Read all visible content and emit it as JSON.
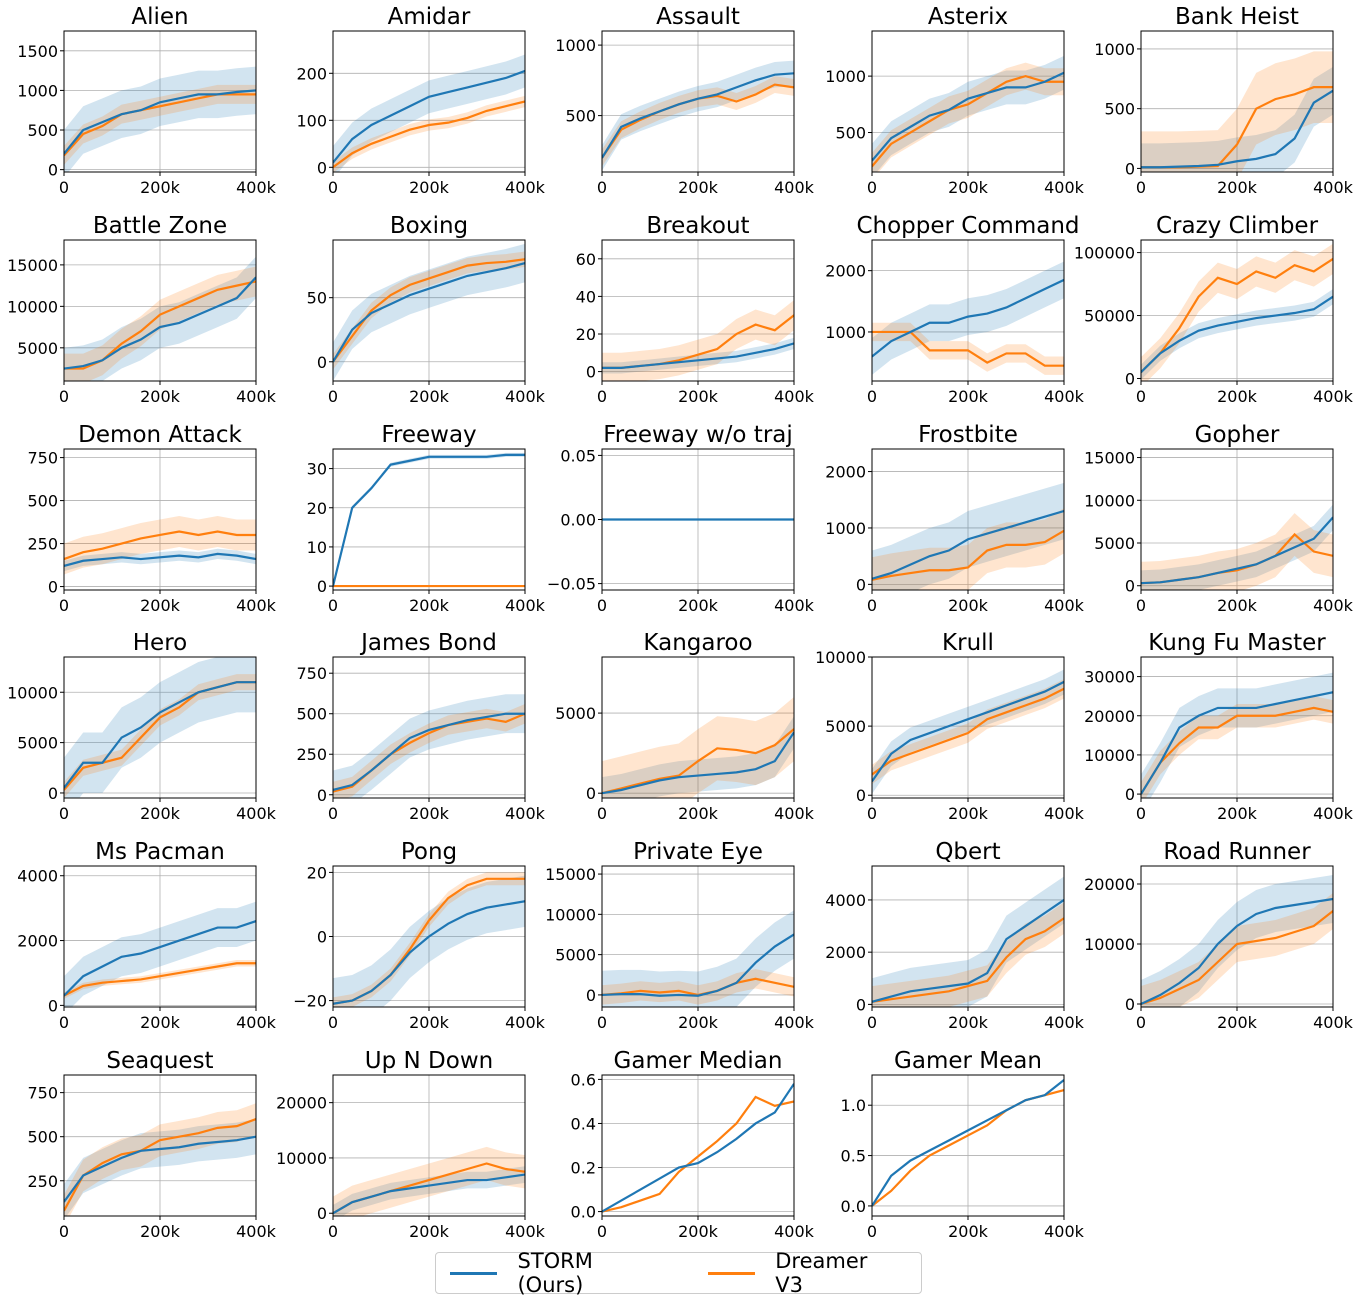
{
  "chart_data": {
    "type": "line",
    "grid": true,
    "legend_placement": "bottom-center",
    "x": [
      0,
      40000,
      80000,
      120000,
      160000,
      200000,
      240000,
      280000,
      320000,
      360000,
      400000
    ],
    "xlim": [
      0,
      400000
    ],
    "xtick_labels": [
      "0",
      "200k",
      "400k"
    ],
    "xticks": [
      0,
      200000,
      400000
    ],
    "series_names": [
      "STORM (Ours)",
      "Dreamer V3"
    ],
    "colors": {
      "storm": "#1f77b4",
      "dreamer": "#ff7f0e"
    },
    "subplots": [
      {
        "title": "Alien",
        "ylim": [
          -30,
          1750
        ],
        "yticks": [
          0,
          500,
          1000,
          1500
        ],
        "storm": [
          200,
          500,
          600,
          700,
          750,
          850,
          900,
          950,
          950,
          980,
          1000
        ],
        "storm_std": 300,
        "dreamer": [
          180,
          450,
          550,
          700,
          750,
          800,
          850,
          900,
          950,
          950,
          950
        ],
        "dreamer_std": 120
      },
      {
        "title": "Amidar",
        "ylim": [
          -10,
          290
        ],
        "yticks": [
          0,
          100,
          200
        ],
        "storm": [
          10,
          60,
          90,
          110,
          130,
          150,
          160,
          170,
          180,
          190,
          205
        ],
        "storm_std": 35,
        "dreamer": [
          0,
          30,
          50,
          65,
          80,
          90,
          95,
          105,
          120,
          130,
          140
        ],
        "dreamer_std": 12
      },
      {
        "title": "Assault",
        "ylim": [
          100,
          1100
        ],
        "yticks": [
          500,
          1000
        ],
        "storm": [
          200,
          420,
          480,
          530,
          580,
          620,
          650,
          700,
          750,
          790,
          800
        ],
        "storm_std": 90,
        "dreamer": [
          200,
          400,
          470,
          530,
          580,
          620,
          640,
          600,
          650,
          720,
          700
        ],
        "dreamer_std": 60
      },
      {
        "title": "Asterix",
        "ylim": [
          150,
          1400
        ],
        "yticks": [
          500,
          1000
        ],
        "storm": [
          250,
          450,
          550,
          650,
          700,
          800,
          850,
          900,
          900,
          950,
          1030
        ],
        "storm_std": 150,
        "dreamer": [
          200,
          400,
          500,
          600,
          700,
          750,
          850,
          950,
          1000,
          950,
          950
        ],
        "dreamer_std": 120
      },
      {
        "title": "Bank Heist",
        "ylim": [
          -30,
          1150
        ],
        "yticks": [
          0,
          500,
          1000
        ],
        "storm": [
          10,
          10,
          15,
          20,
          30,
          60,
          80,
          120,
          250,
          550,
          650
        ],
        "storm_std": 200,
        "dreamer": [
          10,
          10,
          10,
          15,
          20,
          200,
          500,
          580,
          620,
          680,
          680
        ],
        "dreamer_std": 300
      },
      {
        "title": "Battle Zone",
        "ylim": [
          1000,
          18000
        ],
        "yticks": [
          5000,
          10000,
          15000
        ],
        "storm": [
          2500,
          2800,
          3500,
          5000,
          6000,
          7500,
          8000,
          9000,
          10000,
          11000,
          13500
        ],
        "storm_std": 2500,
        "dreamer": [
          2500,
          2500,
          3500,
          5500,
          7000,
          9000,
          10000,
          11000,
          12000,
          12500,
          13000
        ],
        "dreamer_std": 1800
      },
      {
        "title": "Boxing",
        "ylim": [
          -15,
          95
        ],
        "yticks": [
          0,
          50
        ],
        "storm": [
          0,
          25,
          38,
          45,
          52,
          57,
          62,
          67,
          70,
          73,
          77
        ],
        "storm_std": 15,
        "dreamer": [
          0,
          20,
          40,
          52,
          60,
          65,
          70,
          75,
          77,
          78,
          80
        ],
        "dreamer_std": 6
      },
      {
        "title": "Breakout",
        "ylim": [
          -5,
          70
        ],
        "yticks": [
          0,
          20,
          40,
          60
        ],
        "storm": [
          2,
          2,
          3,
          4,
          5,
          6,
          7,
          8,
          10,
          12,
          15
        ],
        "storm_std": 3,
        "dreamer": [
          2,
          2,
          3,
          4,
          6,
          9,
          12,
          20,
          25,
          22,
          30
        ],
        "dreamer_std": 8
      },
      {
        "title": "Chopper Command",
        "ylim": [
          200,
          2500
        ],
        "yticks": [
          1000,
          2000
        ],
        "storm": [
          600,
          850,
          1000,
          1150,
          1150,
          1250,
          1300,
          1400,
          1550,
          1700,
          1850
        ],
        "storm_std": 300,
        "dreamer": [
          1000,
          1000,
          1000,
          700,
          700,
          700,
          500,
          650,
          650,
          450,
          450
        ],
        "dreamer_std": 150
      },
      {
        "title": "Crazy Climber",
        "ylim": [
          -2000,
          110000
        ],
        "yticks": [
          0,
          50000,
          100000
        ],
        "storm": [
          5000,
          20000,
          30000,
          38000,
          42000,
          45000,
          48000,
          50000,
          52000,
          55000,
          65000
        ],
        "storm_std": 6000,
        "dreamer": [
          5000,
          20000,
          40000,
          65000,
          80000,
          75000,
          85000,
          80000,
          90000,
          85000,
          95000
        ],
        "dreamer_std": 12000
      },
      {
        "title": "Demon Attack",
        "ylim": [
          -20,
          800
        ],
        "yticks": [
          0,
          250,
          500,
          750
        ],
        "storm": [
          120,
          150,
          160,
          170,
          160,
          170,
          180,
          170,
          190,
          180,
          160
        ],
        "storm_std": 30,
        "dreamer": [
          160,
          200,
          220,
          250,
          280,
          300,
          320,
          300,
          320,
          300,
          300
        ],
        "dreamer_std": 90
      },
      {
        "title": "Freeway",
        "ylim": [
          -1,
          35
        ],
        "yticks": [
          0,
          10,
          20,
          30
        ],
        "storm": [
          0,
          20,
          25,
          31,
          32,
          33,
          33,
          33,
          33,
          33.5,
          33.5
        ],
        "storm_std": 0.5,
        "dreamer": [
          0,
          0,
          0,
          0,
          0,
          0,
          0,
          0,
          0,
          0,
          0
        ],
        "dreamer_std": 0
      },
      {
        "title": "Freeway w/o traj",
        "ylim": [
          -0.055,
          0.055
        ],
        "yticks": [
          -0.05,
          0,
          0.05
        ],
        "ytick_labels": [
          "−0.05",
          "0.00",
          "0.05"
        ],
        "storm": [
          0,
          0,
          0,
          0,
          0,
          0,
          0,
          0,
          0,
          0,
          0
        ],
        "storm_std": 0,
        "dreamer": [
          0,
          0,
          0,
          0,
          0,
          0,
          0,
          0,
          0,
          0,
          0
        ],
        "dreamer_std": 0
      },
      {
        "title": "Frostbite",
        "ylim": [
          -100,
          2400
        ],
        "yticks": [
          0,
          1000,
          2000
        ],
        "storm": [
          100,
          200,
          350,
          500,
          600,
          800,
          900,
          1000,
          1100,
          1200,
          1300
        ],
        "storm_std": 500,
        "dreamer": [
          80,
          150,
          200,
          250,
          250,
          300,
          600,
          700,
          700,
          750,
          950
        ],
        "dreamer_std": 400
      },
      {
        "title": "Gopher",
        "ylim": [
          -500,
          16000
        ],
        "yticks": [
          0,
          5000,
          10000,
          15000
        ],
        "storm": [
          300,
          400,
          700,
          1000,
          1500,
          2000,
          2500,
          3500,
          4500,
          5500,
          8000
        ],
        "storm_std": 1500,
        "dreamer": [
          300,
          400,
          700,
          1000,
          1500,
          1800,
          2500,
          3500,
          6000,
          4000,
          3500
        ],
        "dreamer_std": 2500
      },
      {
        "title": "Hero",
        "ylim": [
          -500,
          13500
        ],
        "yticks": [
          0,
          5000,
          10000
        ],
        "storm": [
          500,
          3000,
          3000,
          5500,
          6500,
          8000,
          9000,
          10000,
          10500,
          11000,
          11000
        ],
        "storm_std": 3000,
        "dreamer": [
          300,
          2500,
          3000,
          3500,
          5500,
          7500,
          8500,
          10000,
          10500,
          11000,
          11000
        ],
        "dreamer_std": 800
      },
      {
        "title": "James Bond",
        "ylim": [
          -20,
          850
        ],
        "yticks": [
          0,
          250,
          500,
          750
        ],
        "storm": [
          30,
          60,
          150,
          250,
          350,
          400,
          430,
          460,
          480,
          500,
          500
        ],
        "storm_std": 120,
        "dreamer": [
          20,
          50,
          150,
          250,
          320,
          380,
          430,
          450,
          470,
          450,
          500
        ],
        "dreamer_std": 60
      },
      {
        "title": "Kangaroo",
        "ylim": [
          -300,
          8500
        ],
        "yticks": [
          0,
          5000
        ],
        "storm": [
          0,
          200,
          500,
          800,
          1000,
          1100,
          1200,
          1300,
          1500,
          2000,
          3800
        ],
        "storm_std": 1000,
        "dreamer": [
          0,
          300,
          600,
          900,
          1100,
          2000,
          2800,
          2700,
          2500,
          3000,
          4000
        ],
        "dreamer_std": 2000
      },
      {
        "title": "Krull",
        "ylim": [
          -200,
          10000
        ],
        "yticks": [
          0,
          5000,
          10000
        ],
        "storm": [
          1000,
          3000,
          4000,
          4500,
          5000,
          5500,
          6000,
          6500,
          7000,
          7500,
          8200
        ],
        "storm_std": 900,
        "dreamer": [
          1500,
          2500,
          3000,
          3500,
          4000,
          4500,
          5500,
          6000,
          6500,
          7000,
          7700
        ],
        "dreamer_std": 700
      },
      {
        "title": "Kung Fu Master",
        "ylim": [
          -1000,
          35000
        ],
        "yticks": [
          0,
          10000,
          20000,
          30000
        ],
        "storm": [
          0,
          8000,
          17000,
          20000,
          22000,
          22000,
          22000,
          23000,
          24000,
          25000,
          26000
        ],
        "storm_std": 5000,
        "dreamer": [
          0,
          8000,
          13000,
          17000,
          17000,
          20000,
          20000,
          20000,
          21000,
          22000,
          21000
        ],
        "dreamer_std": 3000
      },
      {
        "title": "Ms Pacman",
        "ylim": [
          -50,
          4300
        ],
        "yticks": [
          0,
          2000,
          4000
        ],
        "storm": [
          300,
          900,
          1200,
          1500,
          1600,
          1800,
          2000,
          2200,
          2400,
          2400,
          2600
        ],
        "storm_std": 600,
        "dreamer": [
          300,
          600,
          700,
          750,
          800,
          900,
          1000,
          1100,
          1200,
          1300,
          1300
        ],
        "dreamer_std": 100
      },
      {
        "title": "Pong",
        "ylim": [
          -22,
          22
        ],
        "yticks": [
          -20,
          0,
          20
        ],
        "ytick_labels": [
          "−20",
          "0",
          "20"
        ],
        "storm": [
          -21,
          -20,
          -17,
          -12,
          -5,
          0,
          4,
          7,
          9,
          10,
          11
        ],
        "storm_std": 8,
        "dreamer": [
          -21,
          -20,
          -17,
          -12,
          -4,
          5,
          12,
          16,
          18,
          18,
          18
        ],
        "dreamer_std": 2
      },
      {
        "title": "Private Eye",
        "ylim": [
          -1500,
          16000
        ],
        "yticks": [
          0,
          5000,
          10000,
          15000
        ],
        "storm": [
          0,
          100,
          100,
          -100,
          0,
          -100,
          500,
          1500,
          4000,
          6000,
          7500
        ],
        "storm_std": 3000,
        "dreamer": [
          0,
          200,
          500,
          300,
          500,
          0,
          500,
          1500,
          2000,
          1500,
          1000
        ],
        "dreamer_std": 1200
      },
      {
        "title": "Qbert",
        "ylim": [
          -100,
          5300
        ],
        "yticks": [
          0,
          2000,
          4000
        ],
        "storm": [
          100,
          300,
          500,
          600,
          700,
          800,
          1200,
          2500,
          3000,
          3500,
          4000
        ],
        "storm_std": 900,
        "dreamer": [
          100,
          200,
          300,
          400,
          500,
          700,
          900,
          1800,
          2500,
          2800,
          3300
        ],
        "dreamer_std": 600
      },
      {
        "title": "Road Runner",
        "ylim": [
          -500,
          23000
        ],
        "yticks": [
          0,
          10000,
          20000
        ],
        "storm": [
          0,
          1500,
          3500,
          6000,
          10000,
          13000,
          15000,
          16000,
          16500,
          17000,
          17500
        ],
        "storm_std": 4000,
        "dreamer": [
          0,
          1000,
          2500,
          4000,
          7000,
          10000,
          10500,
          11000,
          12000,
          13000,
          15500
        ],
        "dreamer_std": 3000
      },
      {
        "title": "Seaquest",
        "ylim": [
          50,
          850
        ],
        "yticks": [
          250,
          500,
          750
        ],
        "storm": [
          130,
          280,
          330,
          380,
          420,
          430,
          440,
          460,
          470,
          480,
          500
        ],
        "storm_std": 100,
        "dreamer": [
          80,
          280,
          350,
          400,
          420,
          480,
          500,
          520,
          550,
          560,
          600
        ],
        "dreamer_std": 90
      },
      {
        "title": "Up N Down",
        "ylim": [
          -500,
          25000
        ],
        "yticks": [
          0,
          10000,
          20000
        ],
        "storm": [
          0,
          2000,
          3000,
          4000,
          4500,
          5000,
          5500,
          6000,
          6000,
          6500,
          7000
        ],
        "storm_std": 1500,
        "dreamer": [
          0,
          2000,
          3000,
          4000,
          5000,
          6000,
          7000,
          8000,
          9000,
          8000,
          7500
        ],
        "dreamer_std": 3000
      },
      {
        "title": "Gamer Median",
        "ylim": [
          -0.02,
          0.62
        ],
        "yticks": [
          0,
          0.2,
          0.4,
          0.6
        ],
        "ytick_labels": [
          "0.0",
          "0.2",
          "0.4",
          "0.6"
        ],
        "storm": [
          0,
          0.05,
          0.1,
          0.15,
          0.2,
          0.22,
          0.27,
          0.33,
          0.4,
          0.45,
          0.58
        ],
        "storm_std": 0,
        "dreamer": [
          0,
          0.02,
          0.05,
          0.08,
          0.18,
          0.25,
          0.32,
          0.4,
          0.52,
          0.48,
          0.5
        ],
        "dreamer_std": 0
      },
      {
        "title": "Gamer Mean",
        "ylim": [
          -0.1,
          1.3
        ],
        "yticks": [
          0,
          0.5,
          1.0
        ],
        "ytick_labels": [
          "0.0",
          "0.5",
          "1.0"
        ],
        "storm": [
          0,
          0.3,
          0.45,
          0.55,
          0.65,
          0.75,
          0.85,
          0.95,
          1.05,
          1.1,
          1.25
        ],
        "storm_std": 0,
        "dreamer": [
          0,
          0.15,
          0.35,
          0.5,
          0.6,
          0.7,
          0.8,
          0.95,
          1.05,
          1.1,
          1.15
        ],
        "dreamer_std": 0
      }
    ]
  },
  "legend": {
    "storm": "STORM (Ours)",
    "dreamer": "Dreamer V3"
  }
}
